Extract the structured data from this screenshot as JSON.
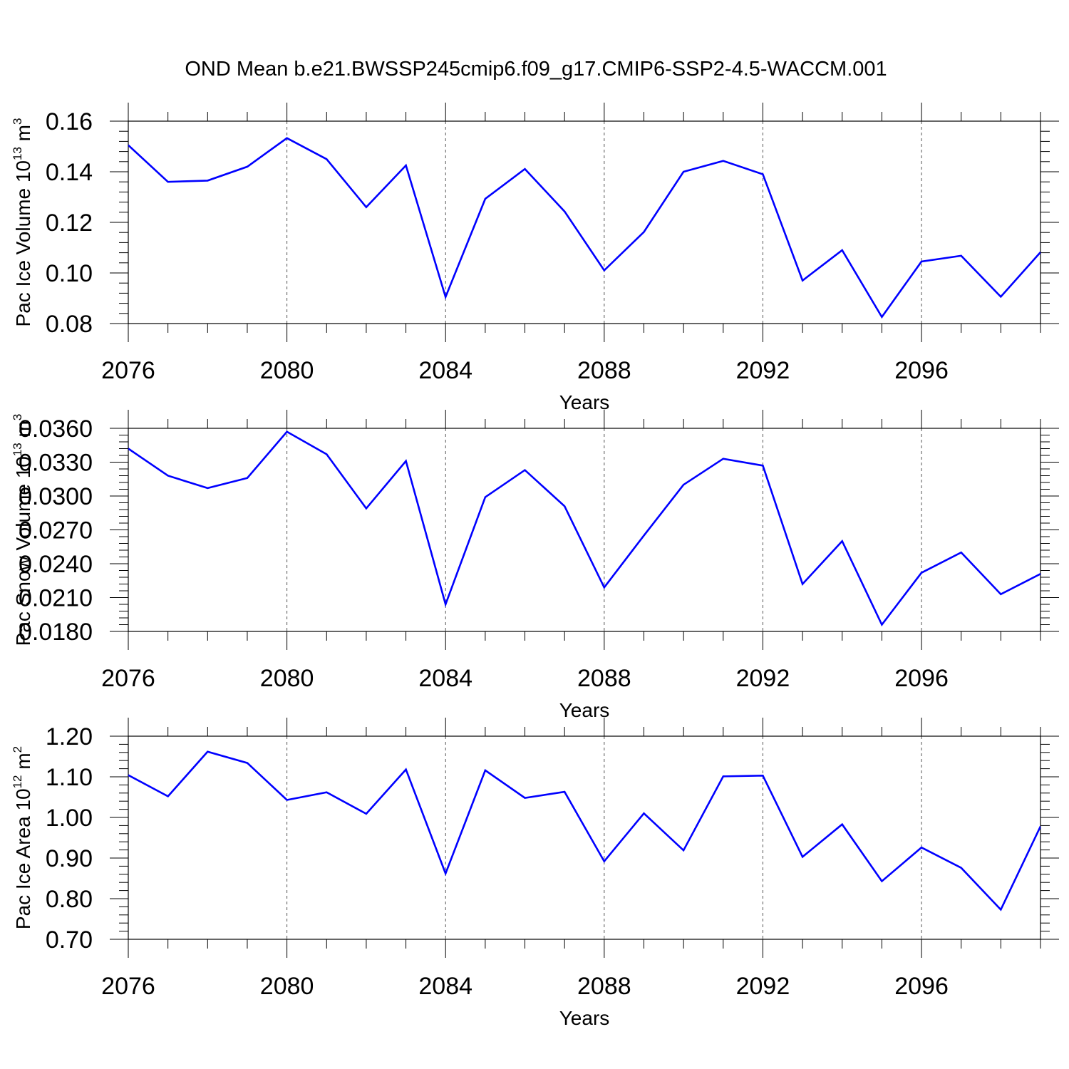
{
  "title": "OND Mean b.e21.BWSSP245cmip6.f09_g17.CMIP6-SSP2-4.5-WACCM.001",
  "line_color": "#0000ff",
  "chart_data": [
    {
      "type": "line",
      "title": "OND Mean b.e21.BWSSP245cmip6.f09_g17.CMIP6-SSP2-4.5-WACCM.001",
      "xlabel": "Years",
      "ylabel": {
        "prefix": "Pac Ice Volume 10",
        "exp": "13",
        "unit": " m",
        "unit_exp": "3"
      },
      "xlim": [
        2076,
        2099
      ],
      "ylim": [
        0.08,
        0.16
      ],
      "xticks": [
        "2076",
        "2080",
        "2084",
        "2088",
        "2092",
        "2096"
      ],
      "yticks": [
        "0.08",
        "0.10",
        "0.12",
        "0.14",
        "0.16"
      ],
      "x": [
        2076,
        2077,
        2078,
        2079,
        2080,
        2081,
        2082,
        2083,
        2084,
        2085,
        2086,
        2087,
        2088,
        2089,
        2090,
        2091,
        2092,
        2093,
        2094,
        2095,
        2096,
        2097,
        2098,
        2099
      ],
      "values": [
        0.1505,
        0.136,
        0.1365,
        0.142,
        0.1533,
        0.145,
        0.126,
        0.1425,
        0.0905,
        0.1293,
        0.1411,
        0.1243,
        0.101,
        0.1162,
        0.14,
        0.1443,
        0.139,
        0.097,
        0.109,
        0.0826,
        0.1045,
        0.1068,
        0.0906,
        0.1082
      ]
    },
    {
      "type": "line",
      "xlabel": "Years",
      "ylabel": {
        "prefix": "Pac Snow Volume 10",
        "exp": "13",
        "unit": " m",
        "unit_exp": "3"
      },
      "xlim": [
        2076,
        2099
      ],
      "ylim": [
        0.018,
        0.036
      ],
      "xticks": [
        "2076",
        "2080",
        "2084",
        "2088",
        "2092",
        "2096"
      ],
      "yticks": [
        "0.0180",
        "0.0210",
        "0.0240",
        "0.0270",
        "0.0300",
        "0.0330",
        "0.0360"
      ],
      "x": [
        2076,
        2077,
        2078,
        2079,
        2080,
        2081,
        2082,
        2083,
        2084,
        2085,
        2086,
        2087,
        2088,
        2089,
        2090,
        2091,
        2092,
        2093,
        2094,
        2095,
        2096,
        2097,
        2098,
        2099
      ],
      "values": [
        0.0342,
        0.0318,
        0.0307,
        0.0316,
        0.0357,
        0.0337,
        0.0289,
        0.0331,
        0.0204,
        0.0299,
        0.0323,
        0.0291,
        0.0219,
        0.0265,
        0.031,
        0.0333,
        0.0327,
        0.0222,
        0.026,
        0.0186,
        0.0232,
        0.025,
        0.0213,
        0.0231
      ]
    },
    {
      "type": "line",
      "xlabel": "Years",
      "ylabel": {
        "prefix": "Pac Ice Area 10",
        "exp": "12",
        "unit": " m",
        "unit_exp": "2"
      },
      "xlim": [
        2076,
        2099
      ],
      "ylim": [
        0.7,
        1.2
      ],
      "xticks": [
        "2076",
        "2080",
        "2084",
        "2088",
        "2092",
        "2096"
      ],
      "yticks": [
        "0.70",
        "0.80",
        "0.90",
        "1.00",
        "1.10",
        "1.20"
      ],
      "x": [
        2076,
        2077,
        2078,
        2079,
        2080,
        2081,
        2082,
        2083,
        2084,
        2085,
        2086,
        2087,
        2088,
        2089,
        2090,
        2091,
        2092,
        2093,
        2094,
        2095,
        2096,
        2097,
        2098,
        2099
      ],
      "values": [
        1.104,
        1.052,
        1.162,
        1.134,
        1.043,
        1.062,
        1.009,
        1.118,
        0.862,
        1.116,
        1.048,
        1.063,
        0.892,
        1.01,
        0.919,
        1.101,
        1.103,
        0.903,
        0.983,
        0.843,
        0.926,
        0.876,
        0.773,
        0.978
      ]
    }
  ]
}
